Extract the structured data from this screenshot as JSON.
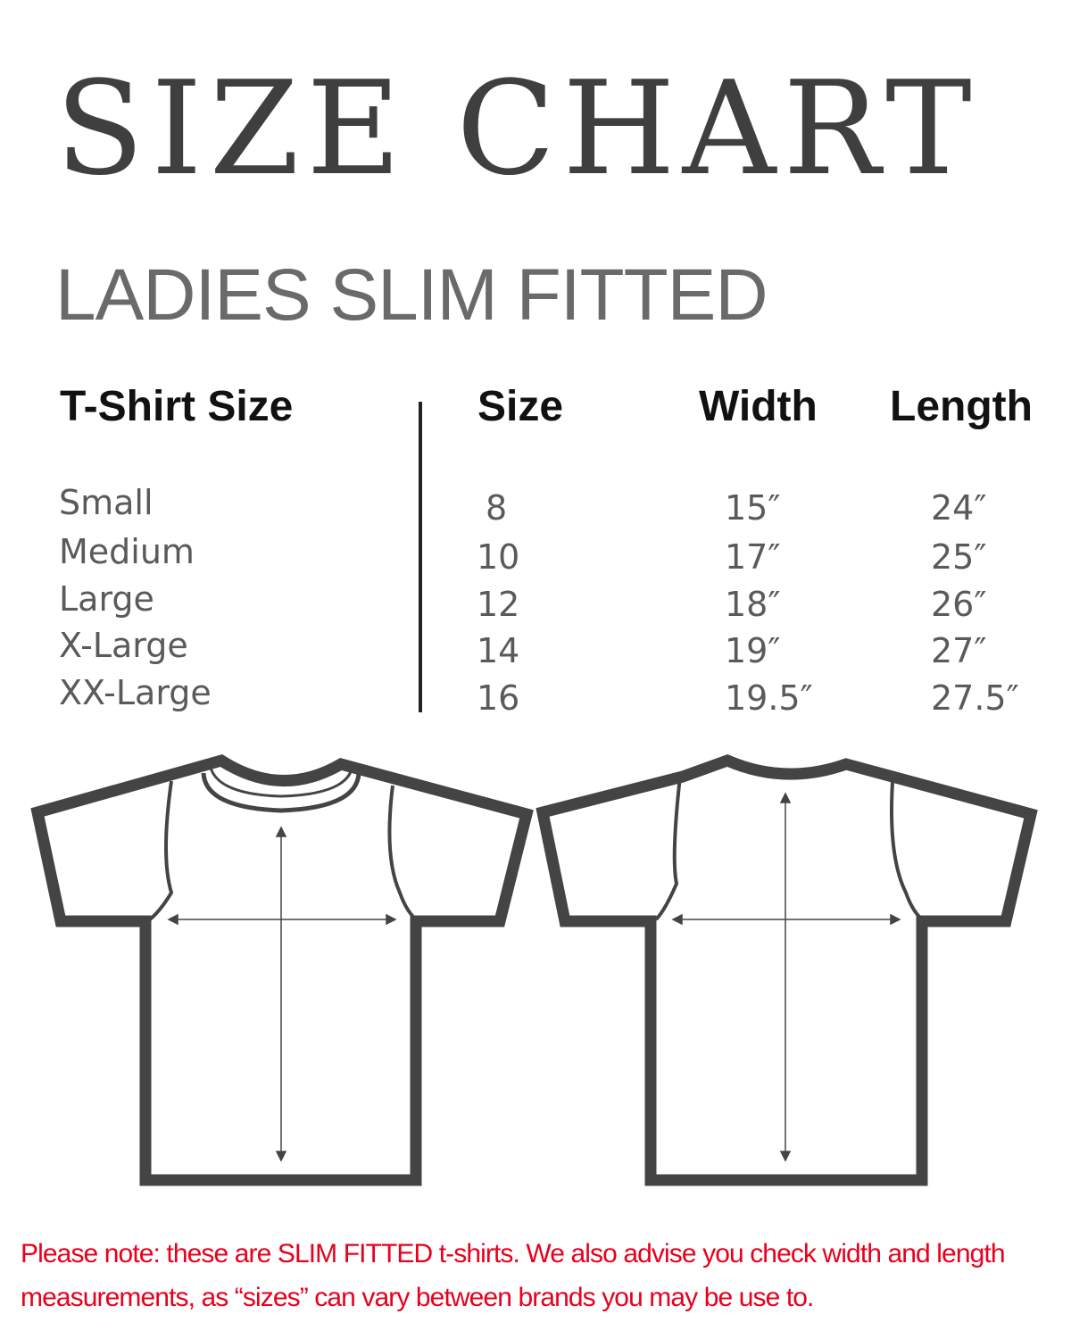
{
  "title": "SIZE CHART",
  "subtitle": "LADIES SLIM FITTED",
  "table": {
    "headers": [
      "T-Shirt Size",
      "Size",
      "Width",
      "Length"
    ],
    "rows": [
      {
        "name": "Small",
        "size": "8",
        "width": "15″",
        "length": "24″"
      },
      {
        "name": "Medium",
        "size": "10",
        "width": "17″",
        "length": "25″"
      },
      {
        "name": "Large",
        "size": "12",
        "width": "18″",
        "length": "26″"
      },
      {
        "name": "X-Large",
        "size": "14",
        "width": "19″",
        "length": "27″"
      },
      {
        "name": "XX-Large",
        "size": "16",
        "width": "19.5″",
        "length": "27.5″"
      }
    ]
  },
  "diagrams": {
    "front": "t-shirt-front-icon",
    "back": "t-shirt-back-icon"
  },
  "note": "Please note: these are SLIM FITTED t-shirts. We also advise you check width and length measurements, as  “sizes” can vary between brands you may be use to.",
  "colors": {
    "title": "#3f3f3f",
    "note": "#e8001c",
    "outline": "#444444"
  }
}
